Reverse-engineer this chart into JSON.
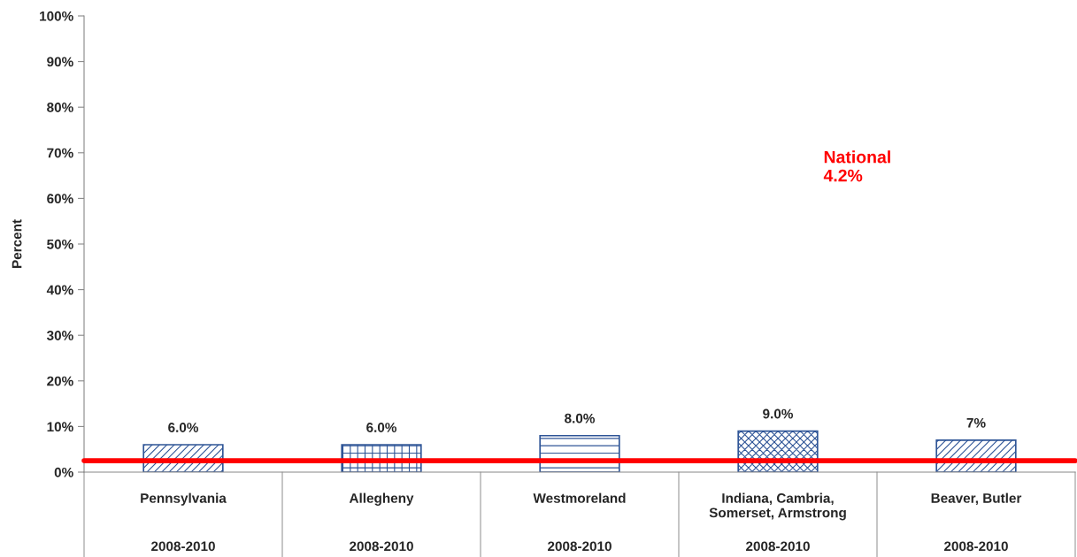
{
  "chart_data": {
    "type": "bar",
    "ylabel": "Percent",
    "categories": [
      "Pennsylvania\n2008-2010",
      "Allegheny\n2008-2010",
      "Westmoreland\n2008-2010",
      "Indiana, Cambria,\nSomerset, Armstrong\n2008-2010",
      "Beaver, Butler\n2008-2010"
    ],
    "series": [
      {
        "color": "#2f5597",
        "values": [
          6.0,
          6.0,
          8.0,
          9.0,
          7.0
        ],
        "value_labels": [
          "6.0%",
          "6.0%",
          "8.0%",
          "9.0%",
          "7%"
        ]
      }
    ],
    "ylim": [
      0,
      100
    ],
    "yticks": [
      {
        "value": 0,
        "label": "0%"
      },
      {
        "value": 10,
        "label": "10%"
      },
      {
        "value": 20,
        "label": "20%"
      },
      {
        "value": 30,
        "label": "30%"
      },
      {
        "value": 40,
        "label": "40%"
      },
      {
        "value": 50,
        "label": "50%"
      },
      {
        "value": 60,
        "label": "60%"
      },
      {
        "value": 70,
        "label": "70%"
      },
      {
        "value": 80,
        "label": "80%"
      },
      {
        "value": 90,
        "label": "90%"
      },
      {
        "value": 100,
        "label": "100%"
      }
    ],
    "ref_lines": [
      {
        "axis": "y",
        "value": 2.5,
        "label": "National\n4.2%",
        "color": "#ff0000"
      }
    ],
    "grid": false,
    "legend": false
  }
}
